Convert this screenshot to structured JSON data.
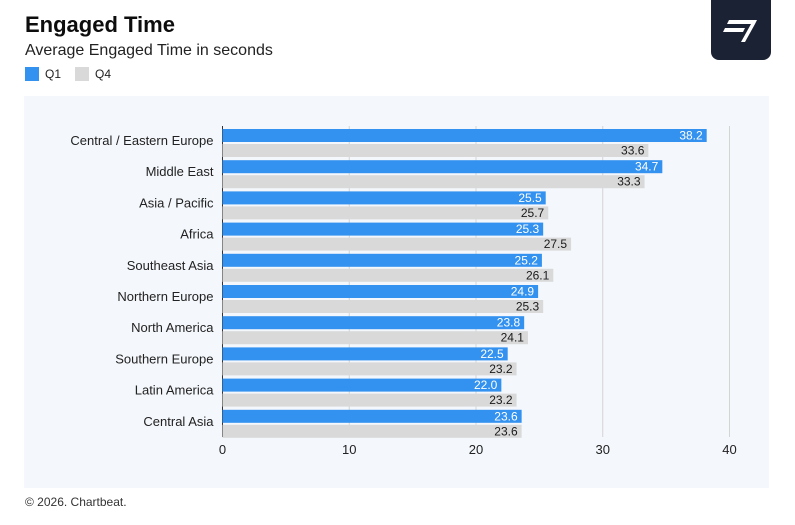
{
  "header": {
    "title": "Engaged Time",
    "subtitle": "Average Engaged Time in seconds"
  },
  "colors": {
    "q1": "#3391f0",
    "q4": "#d9d9d9",
    "logo_bg": "#1b2233",
    "panel_bg": "#f4f7fb"
  },
  "logo": {
    "icon": "chartbeat-logo-icon"
  },
  "chart_data": {
    "type": "bar",
    "orientation": "horizontal",
    "title": "Engaged Time",
    "subtitle": "Average Engaged Time in seconds",
    "categories": [
      "Central / Eastern Europe",
      "Middle East",
      "Asia / Pacific",
      "Africa",
      "Southeast Asia",
      "Northern Europe",
      "North America",
      "Southern Europe",
      "Latin America",
      "Central Asia"
    ],
    "series": [
      {
        "name": "Q1",
        "color": "#3391f0",
        "values": [
          38.2,
          34.7,
          25.5,
          25.3,
          25.2,
          24.9,
          23.8,
          22.5,
          22.0,
          23.6
        ]
      },
      {
        "name": "Q4",
        "color": "#d9d9d9",
        "values": [
          33.6,
          33.3,
          25.7,
          27.5,
          26.1,
          25.3,
          24.1,
          23.2,
          23.2,
          23.6
        ]
      }
    ],
    "xlim": [
      0,
      40
    ],
    "xticks": [
      "0",
      "10",
      "20",
      "30",
      "40"
    ],
    "grid": true,
    "legend": "top-left"
  },
  "footer": {
    "text": "© 2026. Chartbeat."
  }
}
